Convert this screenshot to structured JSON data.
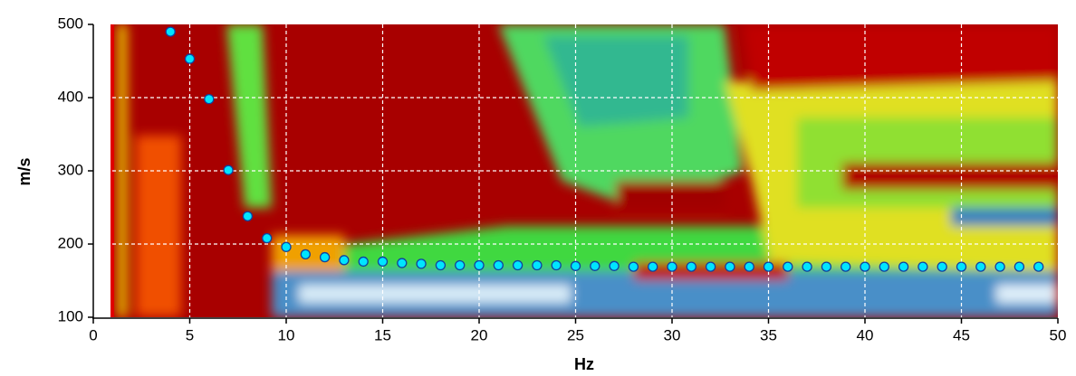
{
  "chart_data": {
    "type": "scatter",
    "x_label": "Hz",
    "y_label": "m/s",
    "xlim": [
      0,
      50
    ],
    "ylim": [
      100,
      500
    ],
    "xticks": [
      0,
      5,
      10,
      15,
      20,
      25,
      30,
      35,
      40,
      45,
      50
    ],
    "yticks": [
      100,
      200,
      300,
      400,
      500
    ],
    "grid": true,
    "series": [
      {
        "color": "#00e5ff",
        "x": [
          4,
          5,
          6,
          7,
          8,
          9,
          10,
          11,
          12,
          13,
          14,
          15,
          16,
          17,
          18,
          19,
          20,
          21,
          22,
          23,
          24,
          25,
          26,
          27,
          28,
          29,
          30,
          31,
          32,
          33,
          34,
          35,
          36,
          37,
          38,
          39,
          40,
          41,
          42,
          43,
          44,
          45,
          46,
          47,
          48,
          49
        ],
        "values": [
          490,
          453,
          398,
          301,
          238,
          208,
          196,
          186,
          182,
          178,
          176,
          176,
          174,
          173,
          171,
          171,
          171,
          171,
          171,
          171,
          171,
          170,
          170,
          170,
          169,
          169,
          169,
          169,
          169,
          169,
          169,
          169,
          169,
          169,
          169,
          169,
          169,
          169,
          169,
          169,
          169,
          169,
          169,
          169,
          169,
          169
        ]
      }
    ]
  }
}
